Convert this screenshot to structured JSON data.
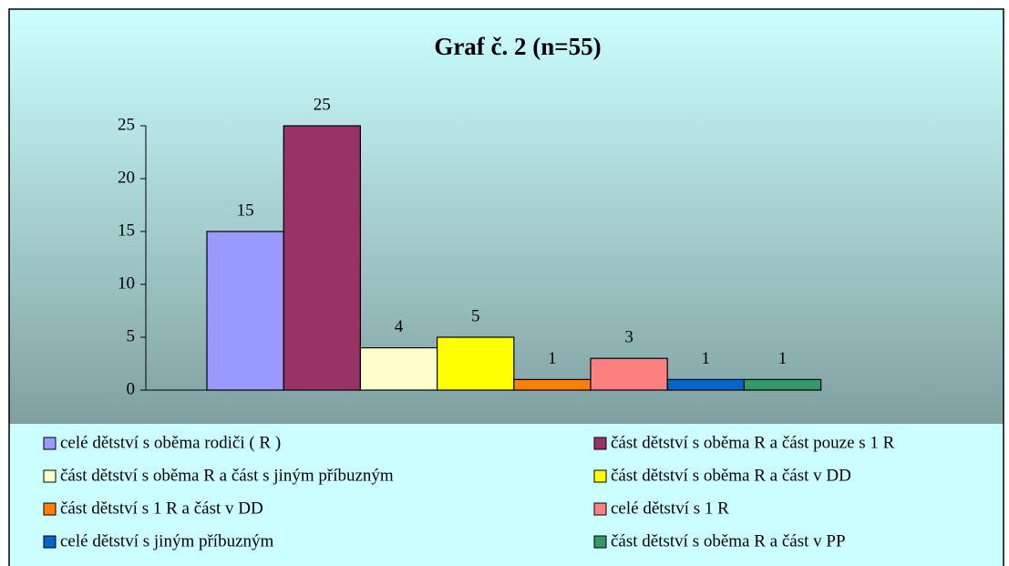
{
  "chart_data": {
    "type": "bar",
    "title": "Graf č. 2 (n=55)",
    "categories": [
      null
    ],
    "series": [
      {
        "name": "celé dětství s oběma rodiči ( R )",
        "color": "#9999ff",
        "values": [
          15
        ]
      },
      {
        "name": "část dětství s oběma R a část pouze s 1 R",
        "color": "#993366",
        "values": [
          25
        ]
      },
      {
        "name": "část dětství s oběma R a část s jiným příbuzným",
        "color": "#ffffcc",
        "values": [
          4
        ]
      },
      {
        "name": "část dětství s oběma R a část v DD",
        "color": "#ffff00",
        "values": [
          5
        ]
      },
      {
        "name": "část dětství s 1 R a část v DD",
        "color": "#ff8000",
        "values": [
          1
        ]
      },
      {
        "name": "celé dětství s 1 R",
        "color": "#ff8080",
        "values": [
          3
        ]
      },
      {
        "name": "celé dětství s jiným příbuzným",
        "color": "#0066cc",
        "values": [
          1
        ]
      },
      {
        "name": "část dětství s oběma R a část v PP",
        "color": "#339966",
        "values": [
          1
        ]
      }
    ],
    "ylim": [
      0,
      25
    ],
    "yticks": [
      0,
      5,
      10,
      15,
      20,
      25
    ],
    "legend": "bottom"
  }
}
